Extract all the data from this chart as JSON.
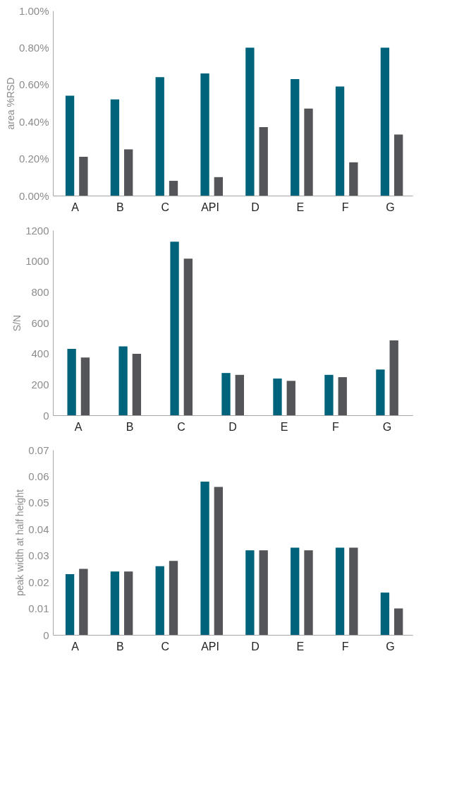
{
  "chart_data": [
    {
      "type": "bar",
      "ylabel": "area %RSD",
      "categories": [
        "A",
        "B",
        "C",
        "API",
        "D",
        "E",
        "F",
        "G"
      ],
      "series": [
        {
          "color": "#00637c",
          "values": [
            0.54,
            0.52,
            0.64,
            0.66,
            0.8,
            0.63,
            0.59,
            0.8
          ]
        },
        {
          "color": "#545559",
          "values": [
            0.21,
            0.25,
            0.08,
            0.1,
            0.37,
            0.47,
            0.18,
            0.33
          ]
        }
      ],
      "ylim": [
        0,
        1
      ],
      "yticks": [
        {
          "value": 0,
          "label": "0.00%"
        },
        {
          "value": 0.2,
          "label": "0.20%"
        },
        {
          "value": 0.4,
          "label": "0.40%"
        },
        {
          "value": 0.6,
          "label": "0.60%"
        },
        {
          "value": 0.8,
          "label": "0.80%"
        },
        {
          "value": 1,
          "label": "1.00%"
        }
      ],
      "grid": false,
      "legend": false
    },
    {
      "type": "bar",
      "ylabel": "S/N",
      "categories": [
        "A",
        "B",
        "C",
        "D",
        "E",
        "F",
        "G"
      ],
      "series": [
        {
          "color": "#00637c",
          "values": [
            431,
            446,
            1126,
            274,
            238,
            262,
            297
          ]
        },
        {
          "color": "#545559",
          "values": [
            375,
            399,
            1016,
            262,
            223,
            247,
            485
          ]
        }
      ],
      "ylim": [
        0,
        1200
      ],
      "yticks": [
        0,
        200,
        400,
        600,
        800,
        1000,
        1200
      ],
      "grid": false,
      "legend": false
    },
    {
      "type": "bar",
      "ylabel": "peak width at half height",
      "categories": [
        "A",
        "B",
        "C",
        "API",
        "D",
        "E",
        "F",
        "G"
      ],
      "series": [
        {
          "color": "#00637c",
          "values": [
            0.023,
            0.024,
            0.026,
            0.058,
            0.032,
            0.033,
            0.033,
            0.016
          ]
        },
        {
          "color": "#545559",
          "values": [
            0.025,
            0.024,
            0.028,
            0.056,
            0.032,
            0.032,
            0.033,
            0.01
          ]
        }
      ],
      "ylim": [
        0,
        0.07
      ],
      "yticks": [
        0,
        0.01,
        0.02,
        0.03,
        0.04,
        0.05,
        0.06,
        0.07
      ],
      "grid": false,
      "legend": false
    }
  ]
}
